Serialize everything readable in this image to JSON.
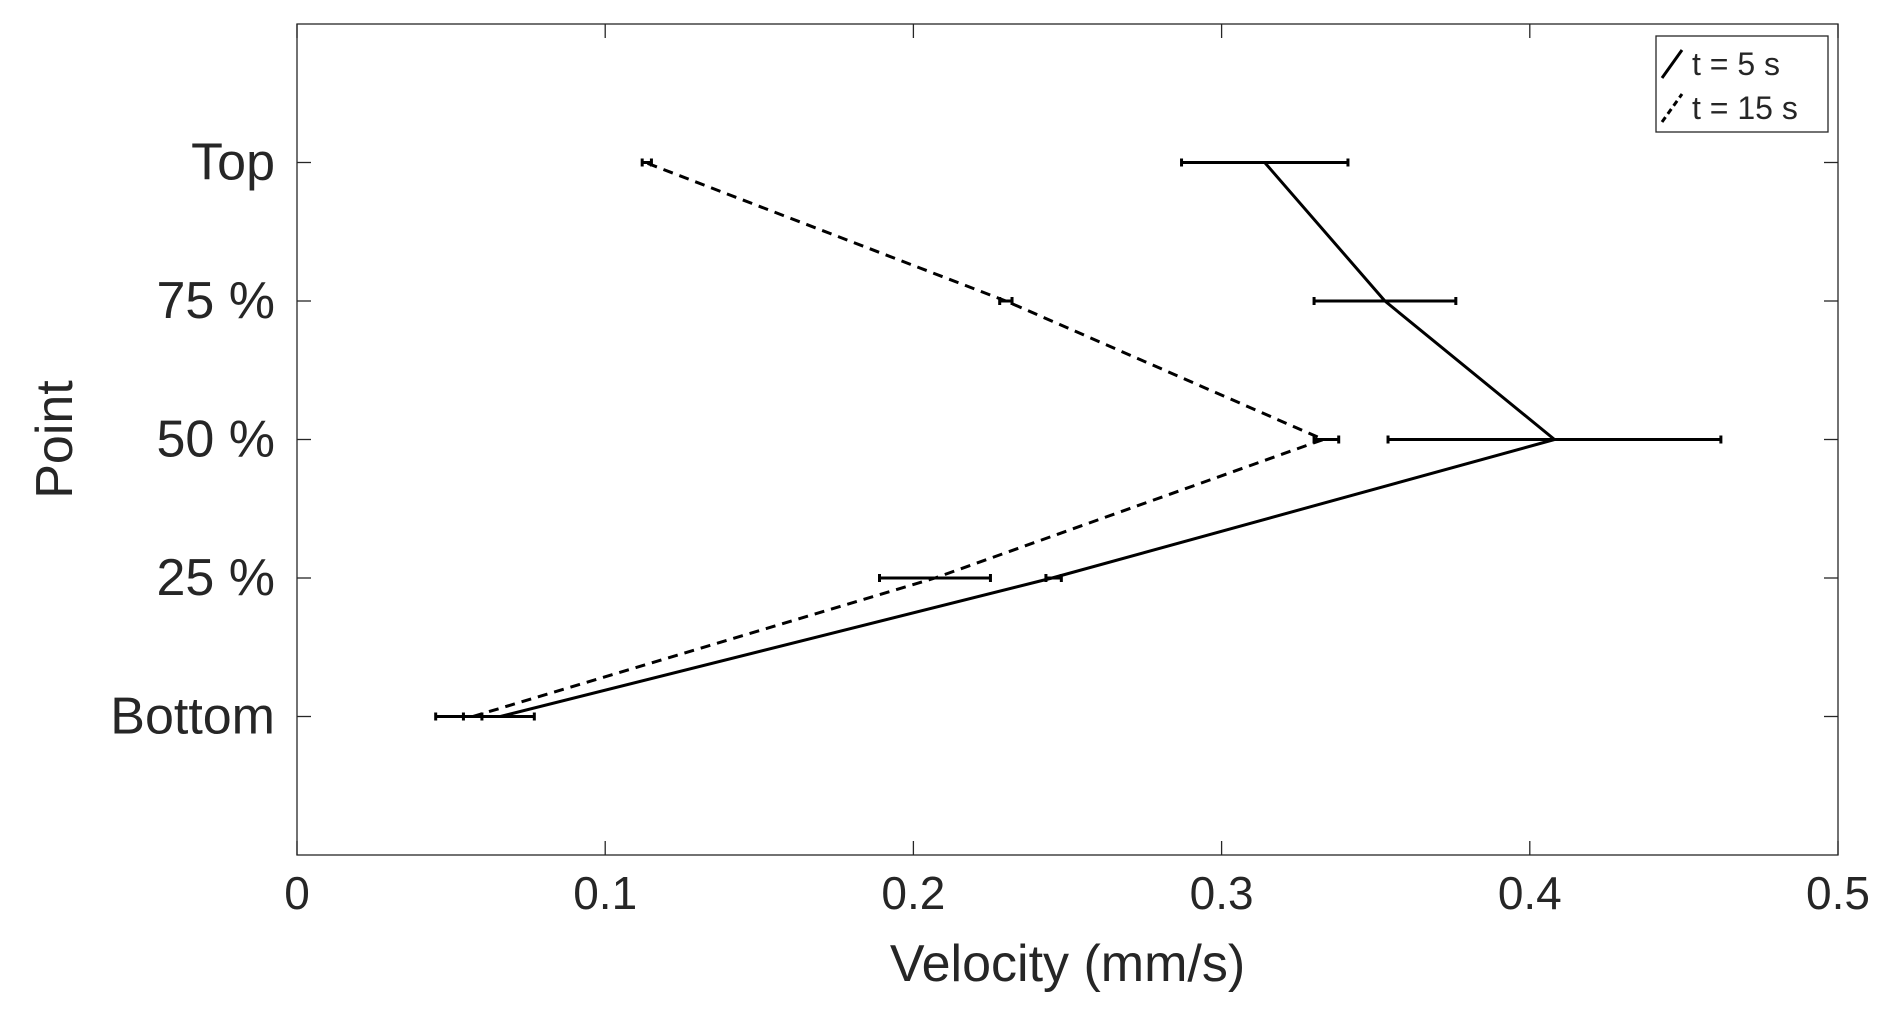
{
  "chart_data": {
    "type": "line",
    "title": "",
    "xlabel": "Velocity (mm/s)",
    "ylabel": "Point",
    "xlim": [
      0,
      0.5
    ],
    "ylim": [
      -1,
      5
    ],
    "xticks": [
      0,
      0.1,
      0.2,
      0.3,
      0.4,
      0.5
    ],
    "xtick_labels": [
      "0",
      "0.1",
      "0.2",
      "0.3",
      "0.4",
      "0.5"
    ],
    "yticks": [
      0,
      1,
      2,
      3,
      4
    ],
    "ytick_labels": [
      "Bottom",
      "25 %",
      "50 %",
      "75 %",
      "Top"
    ],
    "grid": false,
    "legend_position": "top-right",
    "series": [
      {
        "name": "t = 5 s",
        "style": "solid",
        "color": "#000000",
        "y": [
          0,
          1,
          2,
          3,
          4
        ],
        "values": [
          0.066,
          0.245,
          0.408,
          0.353,
          0.314
        ],
        "error_low": [
          0.045,
          0.243,
          0.354,
          0.33,
          0.287
        ],
        "error_high": [
          0.077,
          0.248,
          0.462,
          0.376,
          0.341
        ]
      },
      {
        "name": "t = 15 s",
        "style": "dashed",
        "color": "#000000",
        "y": [
          0,
          1,
          2,
          3,
          4
        ],
        "values": [
          0.057,
          0.207,
          0.333,
          0.23,
          0.113
        ],
        "error_low": [
          0.054,
          0.189,
          0.33,
          0.228,
          0.112
        ],
        "error_high": [
          0.06,
          0.225,
          0.338,
          0.232,
          0.115
        ]
      }
    ]
  }
}
